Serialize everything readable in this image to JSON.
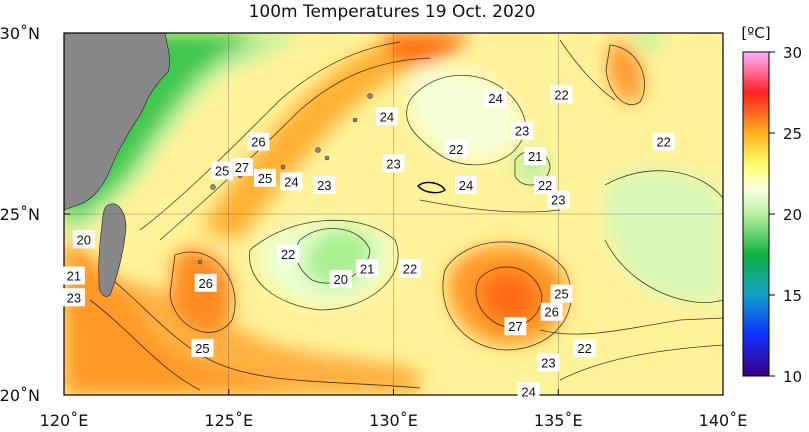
{
  "title": "100m Temperatures  19 Oct. 2020",
  "colorbar": {
    "unit": "[ºC]",
    "ticks": [
      10,
      15,
      20,
      25,
      30
    ],
    "stops": [
      {
        "value": 10,
        "color": "#3a0080"
      },
      {
        "value": 12.5,
        "color": "#1030ff"
      },
      {
        "value": 15,
        "color": "#10a0c8"
      },
      {
        "value": 17.5,
        "color": "#10b040"
      },
      {
        "value": 20,
        "color": "#b8f0a0"
      },
      {
        "value": 21.5,
        "color": "#f8ffe0"
      },
      {
        "value": 23,
        "color": "#ffff70"
      },
      {
        "value": 25,
        "color": "#ffb020"
      },
      {
        "value": 27.5,
        "color": "#ff2020"
      },
      {
        "value": 30,
        "color": "#ffb0ff"
      }
    ]
  },
  "axes": {
    "lon_range": [
      120,
      140
    ],
    "lat_range": [
      20,
      30
    ],
    "lon_ticks": [
      "120˚E",
      "125˚E",
      "130˚E",
      "135˚E",
      "140˚E"
    ],
    "lat_ticks": [
      "30˚N",
      "25˚N",
      "20˚N"
    ],
    "lon_values": [
      120,
      125,
      130,
      135,
      140
    ],
    "lat_values": [
      30,
      25,
      20
    ]
  },
  "isotherm_labels": [
    {
      "text": "24",
      "lon": 129.8,
      "lat": 27.7
    },
    {
      "text": "24",
      "lon": 133.1,
      "lat": 28.2
    },
    {
      "text": "22",
      "lon": 135.1,
      "lat": 28.3
    },
    {
      "text": "23",
      "lon": 133.9,
      "lat": 27.3
    },
    {
      "text": "26",
      "lon": 125.9,
      "lat": 27.0
    },
    {
      "text": "22",
      "lon": 131.9,
      "lat": 26.8
    },
    {
      "text": "21",
      "lon": 134.3,
      "lat": 26.6
    },
    {
      "text": "22",
      "lon": 138.2,
      "lat": 27.0
    },
    {
      "text": "23",
      "lon": 130.0,
      "lat": 26.4
    },
    {
      "text": "25",
      "lon": 124.8,
      "lat": 26.2
    },
    {
      "text": "27",
      "lon": 125.4,
      "lat": 26.3
    },
    {
      "text": "25",
      "lon": 126.1,
      "lat": 26.0
    },
    {
      "text": "24",
      "lon": 126.9,
      "lat": 25.9
    },
    {
      "text": "23",
      "lon": 127.9,
      "lat": 25.8
    },
    {
      "text": "24",
      "lon": 132.2,
      "lat": 25.8
    },
    {
      "text": "22",
      "lon": 134.6,
      "lat": 25.8
    },
    {
      "text": "23",
      "lon": 135.0,
      "lat": 25.4
    },
    {
      "text": "20",
      "lon": 120.6,
      "lat": 24.3
    },
    {
      "text": "22",
      "lon": 126.8,
      "lat": 23.9
    },
    {
      "text": "21",
      "lon": 129.2,
      "lat": 23.5
    },
    {
      "text": "22",
      "lon": 130.5,
      "lat": 23.5
    },
    {
      "text": "20",
      "lon": 128.4,
      "lat": 23.2
    },
    {
      "text": "21",
      "lon": 120.3,
      "lat": 23.3
    },
    {
      "text": "26",
      "lon": 124.3,
      "lat": 23.1
    },
    {
      "text": "23",
      "lon": 120.3,
      "lat": 22.7
    },
    {
      "text": "25",
      "lon": 135.1,
      "lat": 22.8
    },
    {
      "text": "26",
      "lon": 134.8,
      "lat": 22.3
    },
    {
      "text": "27",
      "lon": 133.7,
      "lat": 21.9
    },
    {
      "text": "25",
      "lon": 124.2,
      "lat": 21.3
    },
    {
      "text": "22",
      "lon": 135.8,
      "lat": 21.3
    },
    {
      "text": "23",
      "lon": 134.7,
      "lat": 20.9
    },
    {
      "text": "24",
      "lon": 134.1,
      "lat": 20.1
    }
  ]
}
